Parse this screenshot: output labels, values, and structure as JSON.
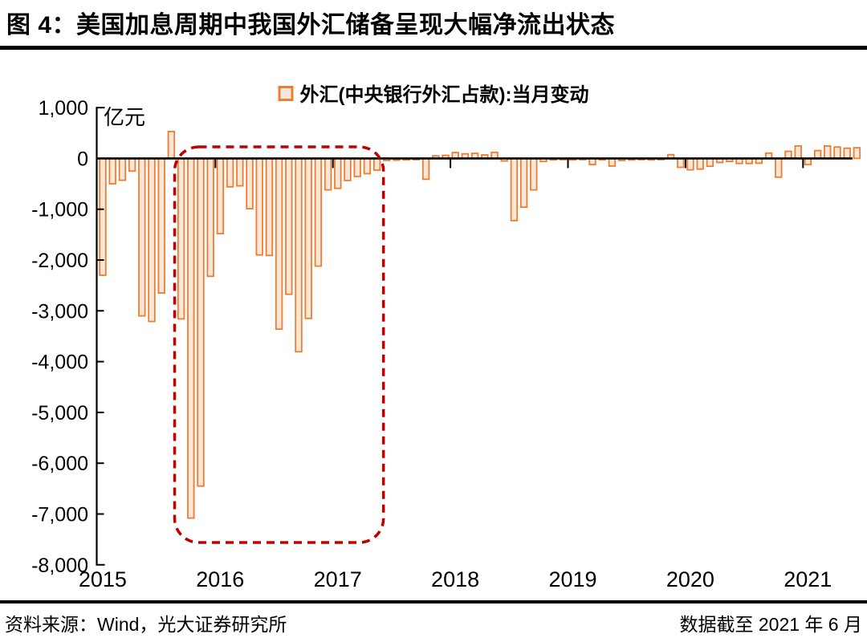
{
  "page": {
    "title": "图 4：美国加息周期中我国外汇储备呈现大幅净流出状态",
    "source": "资料来源：Wind，光大证券研究所",
    "data_cutoff": "数据截至 2021 年 6 月"
  },
  "chart_data": {
    "type": "bar",
    "title": "图 4：美国加息周期中我国外汇储备呈现大幅净流出状态",
    "legend": "外汇(中央银行外汇占款):当月变动",
    "unit_label": "亿元",
    "xlabel": "",
    "ylabel": "亿元",
    "ylim": [
      -8000,
      1000
    ],
    "grid": false,
    "legend_position": "top-center",
    "y_ticks": [
      {
        "label": "1,000",
        "value": 1000
      },
      {
        "label": "0",
        "value": 0
      },
      {
        "label": "-1,000",
        "value": -1000
      },
      {
        "label": "-2,000",
        "value": -2000
      },
      {
        "label": "-3,000",
        "value": -3000
      },
      {
        "label": "-4,000",
        "value": -4000
      },
      {
        "label": "-5,000",
        "value": -5000
      },
      {
        "label": "-6,000",
        "value": -6000
      },
      {
        "label": "-7,000",
        "value": -7000
      },
      {
        "label": "-8,000",
        "value": -8000
      }
    ],
    "x_year_labels": [
      "2015",
      "2016",
      "2017",
      "2018",
      "2019",
      "2020",
      "2021"
    ],
    "start_month": "2015-01",
    "values": [
      -2300,
      -500,
      -430,
      -250,
      -3100,
      -3210,
      -2650,
      530,
      -3160,
      -7080,
      -6450,
      -2320,
      -1480,
      -560,
      -540,
      -990,
      -1900,
      -1910,
      -3360,
      -2675,
      -3805,
      -3150,
      -2120,
      -620,
      -590,
      -435,
      -355,
      -300,
      -230,
      -40,
      -35,
      -30,
      -25,
      -410,
      50,
      60,
      115,
      90,
      100,
      70,
      120,
      -50,
      -1225,
      -960,
      -620,
      -60,
      -30,
      -25,
      -30,
      -25,
      -120,
      -30,
      -150,
      -40,
      -30,
      -25,
      -30,
      -25,
      75,
      -175,
      -225,
      -210,
      -155,
      -80,
      -60,
      -100,
      -100,
      -95,
      105,
      -370,
      140,
      245,
      -120,
      155,
      245,
      225,
      200,
      210
    ],
    "annotation": {
      "shape": "rounded-dashed-rect",
      "from_month": "2015-09",
      "to_month": "2017-05",
      "color": "#C00000",
      "meaning": "highlights large net FX outflow period during US rate-hike cycle"
    },
    "colors": {
      "bar_border": "#ED7D31",
      "bar_fill": "#FBE7D8",
      "axis": "#000000",
      "annotation": "#C00000"
    }
  }
}
